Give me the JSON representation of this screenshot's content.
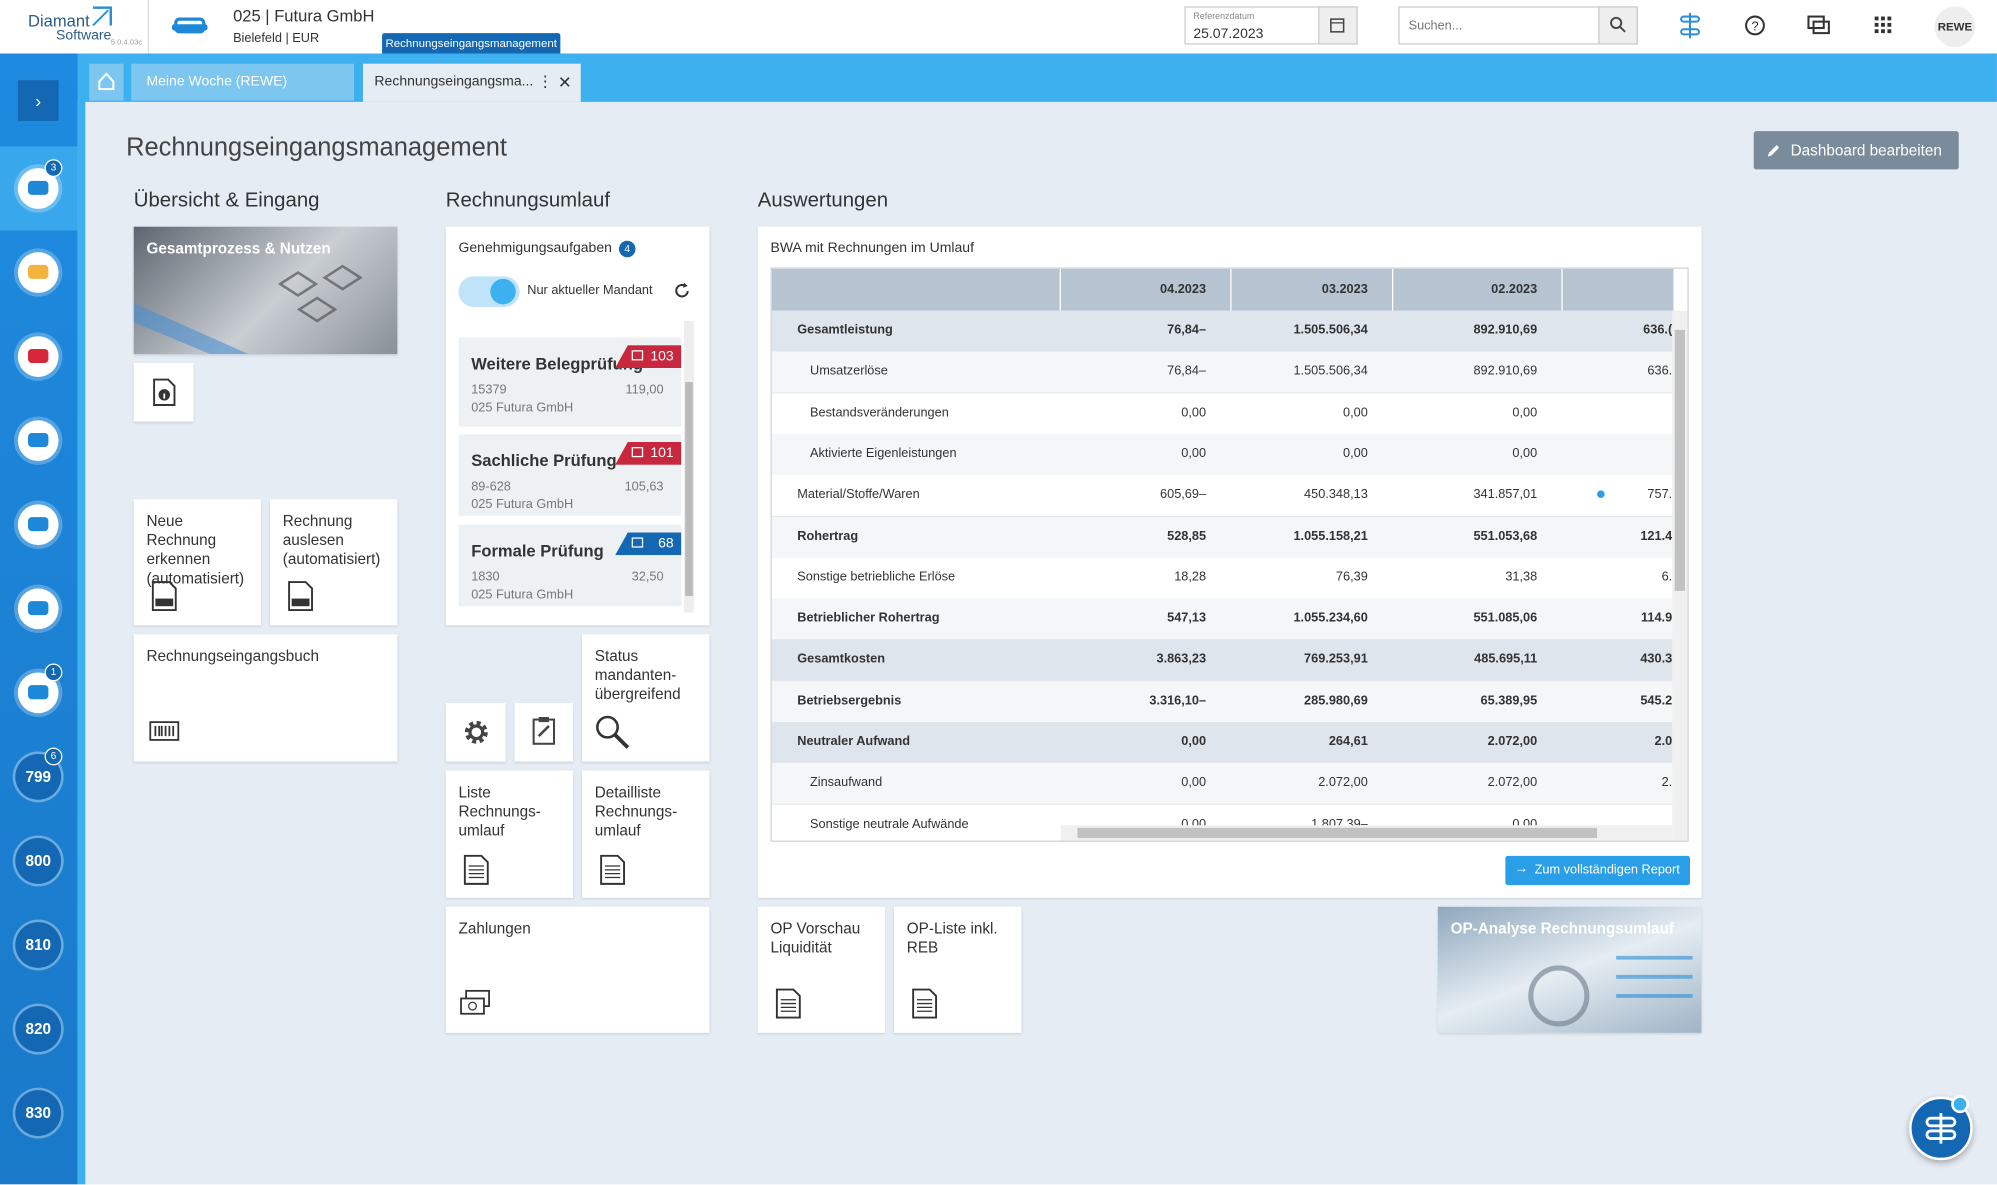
{
  "header": {
    "logo": "Diamant",
    "logo_sub": "Software",
    "version": "5.0.4.03c",
    "company": "025 | Futura GmbH",
    "location": "Bielefeld | EUR",
    "tooltip": "Rechnungseingangsmanagement",
    "date_label": "Referenzdatum",
    "date": "25.07.2023",
    "search": "Suchen...",
    "user": "REWE"
  },
  "sidebar": {
    "badges": [
      "3",
      "1",
      "6"
    ],
    "items": [
      "799",
      "800",
      "810",
      "820",
      "830"
    ]
  },
  "tabs": [
    "Meine Woche (REWE)",
    "Rechnungseingangsma..."
  ],
  "page": {
    "title": "Rechnungseingangsmanagement",
    "edit_button": "Dashboard bearbeiten"
  },
  "sections": [
    "Übersicht & Eingang",
    "Rechnungsumlauf",
    "Auswertungen"
  ],
  "tiles": {
    "overview": "Gesamtprozess & Nutzen",
    "recognize": "Neue Rechnung erkennen (automatisiert)",
    "read": "Rechnung auslesen (automatisiert)",
    "book": "Rechnungseingangsbuch",
    "status": "Status mandanten-übergreifend",
    "list": "Liste Rechnungs-umlauf",
    "detail": "Detailliste Rechnungs-umlauf",
    "payments": "Zahlungen",
    "op_preview": "OP Vorschau Liquidität",
    "op_list": "OP-Liste inkl. REB",
    "op_analysis": "OP-Analyse Rechnungsumlauf"
  },
  "approvals": {
    "title": "Genehmigungsaufgaben",
    "count": "4",
    "toggle": "Nur aktueller Mandant",
    "tasks": [
      {
        "name": "Weitere Belegprüfung",
        "badge": "103",
        "number": "15379",
        "amount": "119,00",
        "company": "025 Futura GmbH"
      },
      {
        "name": "Sachliche Prüfung",
        "badge": "101",
        "number": "89-628",
        "amount": "105,63",
        "company": "025 Futura GmbH"
      },
      {
        "name": "Formale Prüfung",
        "badge": "68",
        "number": "1830",
        "amount": "32,50",
        "company": "025 Futura GmbH"
      }
    ]
  },
  "bwa": {
    "title": "BWA mit Rechnungen im Umlauf",
    "columns": [
      "04.2023",
      "03.2023",
      "02.2023"
    ],
    "report_button": "Zum vollständigen Report",
    "rows": [
      {
        "label": "Gesamtleistung",
        "style": "group",
        "cells": [
          "76,84–",
          "1.505.506,34",
          "892.910,69",
          "636.("
        ]
      },
      {
        "label": "Umsatzerlöse",
        "style": "sub",
        "cells": [
          "76,84–",
          "1.505.506,34",
          "892.910,69",
          "636."
        ]
      },
      {
        "label": "Bestandsveränderungen",
        "style": "sub",
        "cells": [
          "0,00",
          "0,00",
          "0,00",
          ""
        ]
      },
      {
        "label": "Aktivierte Eigenleistungen",
        "style": "sub",
        "cells": [
          "0,00",
          "0,00",
          "0,00",
          ""
        ]
      },
      {
        "label": "Material/Stoffe/Waren",
        "style": "normal",
        "cells": [
          "605,69–",
          "450.348,13",
          "341.857,01",
          "757."
        ]
      },
      {
        "label": "Rohertrag",
        "style": "bold",
        "cells": [
          "528,85",
          "1.055.158,21",
          "551.053,68",
          "121.4"
        ]
      },
      {
        "label": "Sonstige betriebliche Erlöse",
        "style": "normal",
        "cells": [
          "18,28",
          "76,39",
          "31,38",
          "6."
        ]
      },
      {
        "label": "Betrieblicher Rohertrag",
        "style": "bold",
        "cells": [
          "547,13",
          "1.055.234,60",
          "551.085,06",
          "114.9"
        ]
      },
      {
        "label": "Gesamtkosten",
        "style": "group",
        "cells": [
          "3.863,23",
          "769.253,91",
          "485.695,11",
          "430.3"
        ]
      },
      {
        "label": "Betriebsergebnis",
        "style": "bold",
        "cells": [
          "3.316,10–",
          "285.980,69",
          "65.389,95",
          "545.2"
        ]
      },
      {
        "label": "Neutraler Aufwand",
        "style": "group",
        "cells": [
          "0,00",
          "264,61",
          "2.072,00",
          "2.0"
        ]
      },
      {
        "label": "Zinsaufwand",
        "style": "sub",
        "cells": [
          "0,00",
          "2.072,00",
          "2.072,00",
          "2."
        ]
      },
      {
        "label": "Sonstige neutrale Aufwände",
        "style": "sub",
        "cells": [
          "0,00",
          "1.807,39–",
          "0,00",
          ""
        ]
      }
    ]
  }
}
